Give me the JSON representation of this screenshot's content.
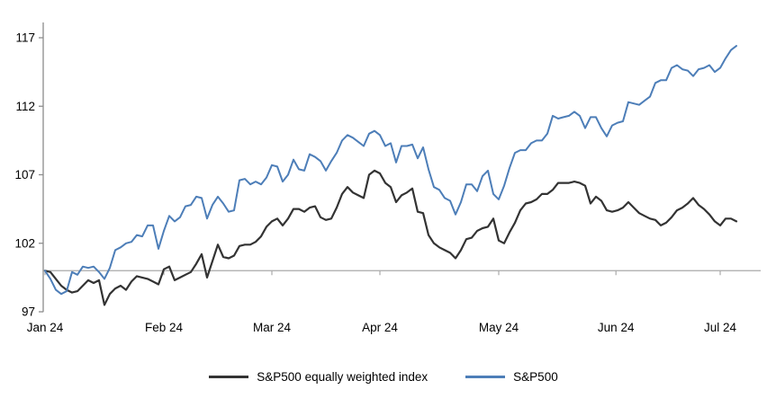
{
  "chart": {
    "y_axis": {
      "ticks": [
        117,
        112,
        107,
        102,
        97
      ]
    },
    "x_axis": {
      "ticks": [
        {
          "label": "Jan 24",
          "index": 0
        },
        {
          "label": "Feb 24",
          "index": 22
        },
        {
          "label": "Mar 24",
          "index": 42
        },
        {
          "label": "Apr 24",
          "index": 62
        },
        {
          "label": "May 24",
          "index": 84
        },
        {
          "label": "Jun 24",
          "index": 105.7
        },
        {
          "label": "Jul 24",
          "index": 125
        }
      ]
    },
    "baseline_value": 100,
    "colors": {
      "axis": "#8c8c8c",
      "baseline": "#aaaaaa",
      "text": "#000000"
    }
  },
  "chart_data": {
    "type": "line",
    "title": "",
    "xlabel": "",
    "ylabel": "",
    "ylim": [
      97,
      117
    ],
    "x_unit": "daily closes, Jan 2024 - early Jul 2024, indexed to 100",
    "grid": "baseline-at-100-only",
    "legend_position": "bottom-center",
    "series": [
      {
        "name": "S&P500 equally weighted index",
        "color": "#333333",
        "values": [
          100,
          99.9,
          99.4,
          98.9,
          98.6,
          98.4,
          98.5,
          98.9,
          99.3,
          99.1,
          99.3,
          97.5,
          98.3,
          98.7,
          98.9,
          98.6,
          99.2,
          99.6,
          99.5,
          99.4,
          99.2,
          99.0,
          100.1,
          100.3,
          99.3,
          99.5,
          99.7,
          99.9,
          100.5,
          101.2,
          99.5,
          100.7,
          101.9,
          101.0,
          100.9,
          101.1,
          101.8,
          101.9,
          101.9,
          102.1,
          102.5,
          103.2,
          103.6,
          103.8,
          103.3,
          103.8,
          104.5,
          104.5,
          104.3,
          104.6,
          104.7,
          103.9,
          103.7,
          103.8,
          104.6,
          105.6,
          106.1,
          105.7,
          105.5,
          105.3,
          107.0,
          107.3,
          107.1,
          106.4,
          106.1,
          105.0,
          105.5,
          105.7,
          106.0,
          104.3,
          104.2,
          102.6,
          102.0,
          101.7,
          101.5,
          101.3,
          100.9,
          101.5,
          102.3,
          102.4,
          102.9,
          103.1,
          103.2,
          103.8,
          102.2,
          102.0,
          102.8,
          103.5,
          104.4,
          104.9,
          105.0,
          105.2,
          105.6,
          105.6,
          105.9,
          106.4,
          106.4,
          106.4,
          106.5,
          106.4,
          106.2,
          104.9,
          105.4,
          105.1,
          104.4,
          104.3,
          104.4,
          104.6,
          105.0,
          104.6,
          104.2,
          104.0,
          103.8,
          103.7,
          103.3,
          103.5,
          103.9,
          104.4,
          104.6,
          104.9,
          105.3,
          104.8,
          104.5,
          104.1,
          103.6,
          103.3,
          103.8,
          103.8,
          103.6
        ]
      },
      {
        "name": "S&P500",
        "color": "#4d7eb8",
        "values": [
          100,
          99.4,
          98.6,
          98.3,
          98.5,
          99.9,
          99.7,
          100.3,
          100.2,
          100.3,
          99.9,
          99.4,
          100.2,
          101.5,
          101.7,
          102.0,
          102.1,
          102.6,
          102.5,
          103.3,
          103.3,
          101.6,
          102.9,
          104.0,
          103.6,
          103.9,
          104.7,
          104.8,
          105.4,
          105.3,
          103.8,
          104.8,
          105.4,
          104.9,
          104.3,
          104.4,
          106.6,
          106.7,
          106.3,
          106.5,
          106.3,
          106.8,
          107.7,
          107.6,
          106.5,
          107.0,
          108.1,
          107.4,
          107.3,
          108.5,
          108.3,
          108.0,
          107.3,
          108.0,
          108.6,
          109.5,
          109.9,
          109.7,
          109.4,
          109.1,
          110.0,
          110.2,
          109.9,
          109.1,
          109.3,
          107.9,
          109.1,
          109.1,
          109.2,
          108.2,
          109.0,
          107.4,
          106.1,
          105.9,
          105.3,
          105.1,
          104.1,
          105.0,
          106.3,
          106.3,
          105.8,
          106.9,
          107.3,
          105.6,
          105.2,
          106.2,
          107.5,
          108.6,
          108.8,
          108.8,
          109.3,
          109.5,
          109.5,
          110.0,
          111.3,
          111.1,
          111.2,
          111.3,
          111.6,
          111.3,
          110.4,
          111.2,
          111.2,
          110.4,
          109.8,
          110.6,
          110.8,
          110.9,
          112.3,
          112.2,
          112.1,
          112.4,
          112.7,
          113.7,
          113.9,
          113.9,
          114.8,
          115.0,
          114.7,
          114.6,
          114.2,
          114.7,
          114.8,
          115.0,
          114.5,
          114.8,
          115.5,
          116.1,
          116.4
        ]
      }
    ]
  },
  "legend": {
    "items": [
      {
        "label": "S&P500 equally weighted index",
        "color": "#333333"
      },
      {
        "label": "S&P500",
        "color": "#4d7eb8"
      }
    ]
  }
}
